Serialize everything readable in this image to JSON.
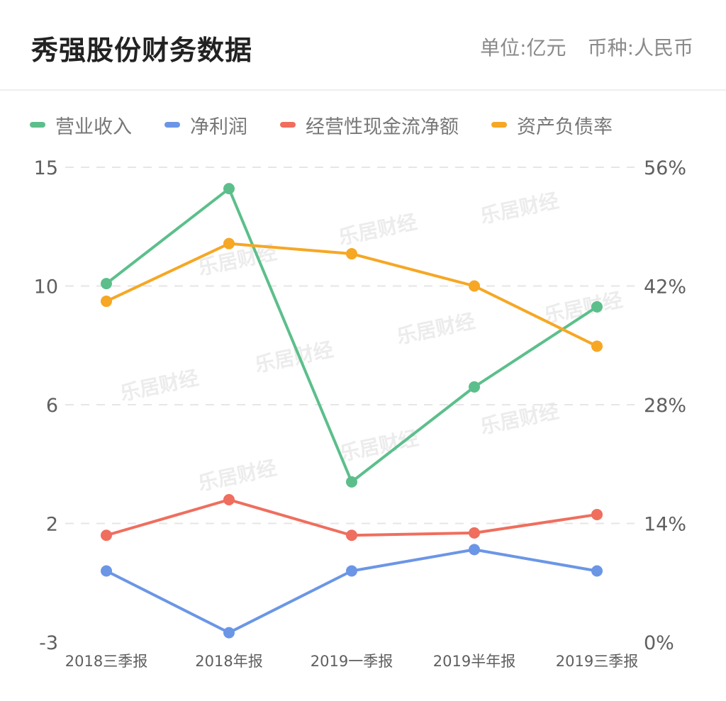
{
  "header": {
    "title": "秀强股份财务数据",
    "unit": "单位:亿元",
    "currency": "币种:人民币"
  },
  "chart_data": {
    "type": "line",
    "categories": [
      "2018三季报",
      "2018年报",
      "2019一季报",
      "2019半年报",
      "2019三季报"
    ],
    "left_axis": {
      "ticks": [
        "15",
        "10",
        "6",
        "2",
        "-3"
      ],
      "ticks_numeric": [
        15,
        10,
        6,
        2,
        -3
      ]
    },
    "right_axis": {
      "ticks": [
        "56%",
        "42%",
        "28%",
        "14%",
        "0%"
      ],
      "ticks_numeric": [
        56,
        42,
        28,
        14,
        0
      ]
    },
    "series": [
      {
        "name": "营业收入",
        "color": "#5cbf8b",
        "axis": "left",
        "values": [
          10.1,
          14.1,
          3.4,
          6.6,
          9.3
        ]
      },
      {
        "name": "净利润",
        "color": "#6b96e6",
        "axis": "left",
        "values": [
          0.0,
          -2.6,
          0.0,
          0.9,
          0.0
        ]
      },
      {
        "name": "经营性现金流净额",
        "color": "#ef6e5e",
        "axis": "left",
        "values": [
          1.5,
          2.8,
          1.5,
          1.6,
          2.3
        ]
      },
      {
        "name": "资产负债率",
        "color": "#f6a724",
        "axis": "right",
        "values": [
          40.2,
          47.0,
          45.8,
          42.0,
          34.9
        ]
      }
    ],
    "grid": true,
    "grid_style": "dashed",
    "legend_position": "top-left",
    "watermark": "乐居财经"
  }
}
